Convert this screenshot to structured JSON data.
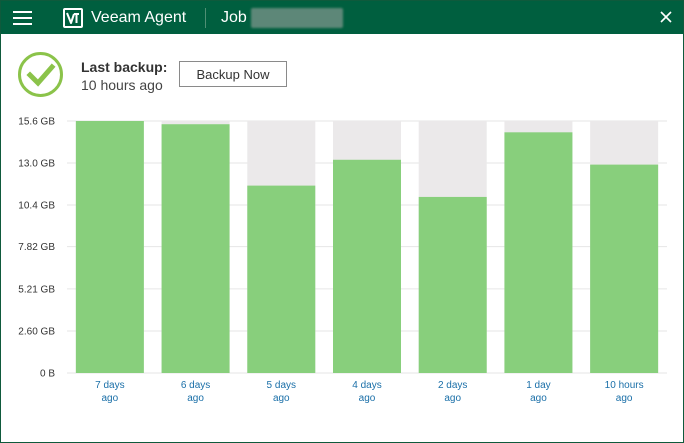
{
  "titlebar": {
    "app_title": "Veeam Agent",
    "job_label": "Job"
  },
  "status": {
    "label": "Last backup:",
    "time": "10 hours ago",
    "state_icon": "check-circle-icon",
    "state_color": "#8bc34a"
  },
  "actions": {
    "backup_now": "Backup Now"
  },
  "colors": {
    "titlebar": "#005f3f",
    "bar": "#88cf7c",
    "bar_track": "#ebe9ea",
    "axis_label": "#333333",
    "category_label": "#1a6fa8"
  },
  "chart_data": {
    "type": "bar",
    "categories": [
      [
        "7 days",
        "ago"
      ],
      [
        "6 days",
        "ago"
      ],
      [
        "5 days",
        "ago"
      ],
      [
        "4 days",
        "ago"
      ],
      [
        "2 days",
        "ago"
      ],
      [
        "1 day",
        "ago"
      ],
      [
        "10 hours",
        "ago"
      ]
    ],
    "values": [
      15.6,
      15.4,
      11.6,
      13.2,
      10.9,
      14.9,
      12.9
    ],
    "unit": "GB",
    "ylim": [
      0,
      15.6
    ],
    "yticks": [
      "0 B",
      "2.60 GB",
      "5.21 GB",
      "7.82 GB",
      "10.4 GB",
      "13.0 GB",
      "15.6 GB"
    ],
    "ytick_values": [
      0,
      2.6,
      5.21,
      7.82,
      10.4,
      13.0,
      15.6
    ],
    "grid": true,
    "legend": "none"
  }
}
